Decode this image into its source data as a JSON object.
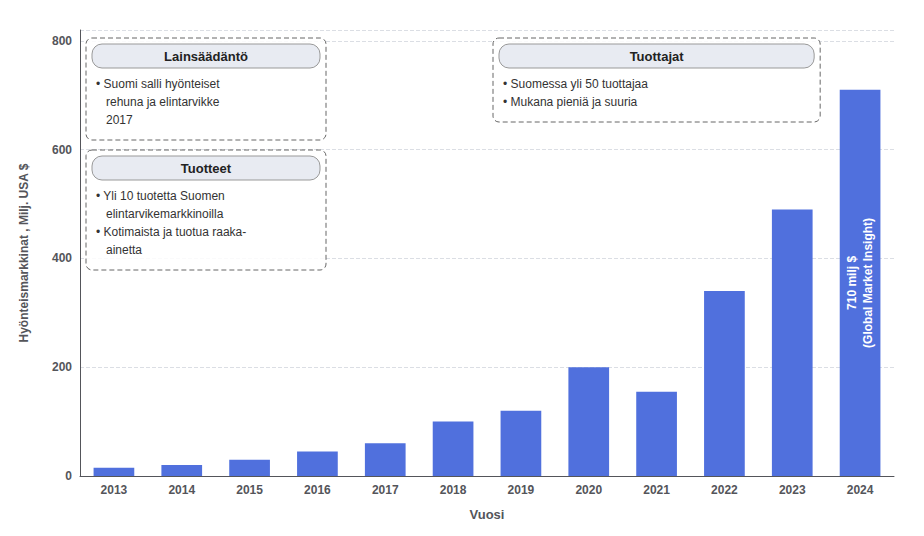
{
  "chart_data": {
    "type": "bar",
    "xlabel": "Vuosi",
    "ylabel": "Hyönteismarkkinat , Milj. USA $",
    "categories": [
      "2013",
      "2014",
      "2015",
      "2016",
      "2017",
      "2018",
      "2019",
      "2020",
      "2021",
      "2022",
      "2023",
      "2024"
    ],
    "values": [
      15,
      20,
      30,
      45,
      60,
      100,
      120,
      200,
      155,
      340,
      490,
      710
    ],
    "ylim": [
      0,
      820
    ],
    "yticks": [
      0,
      200,
      400,
      600,
      800
    ],
    "grid": true,
    "annotations": [
      {
        "title": "Lainsäädäntö",
        "lines": [
          "• Suomi salli hyönteiset",
          "rehuna ja elintarvikke",
          "2017"
        ]
      },
      {
        "title": "Tuotteet",
        "lines": [
          "• Yli 10 tuotetta Suomen",
          "elintarvikemarkkinoilla",
          "• Kotimaista ja tuotua raaka-",
          "ainetta"
        ]
      },
      {
        "title": "Tuottajat",
        "lines": [
          "• Suomessa yli 50 tuottajaa",
          "• Mukana pieniä ja suuria"
        ]
      },
      {
        "category": "2024",
        "lines": [
          "710 milj $",
          "(Global Market Insight)"
        ]
      }
    ]
  }
}
